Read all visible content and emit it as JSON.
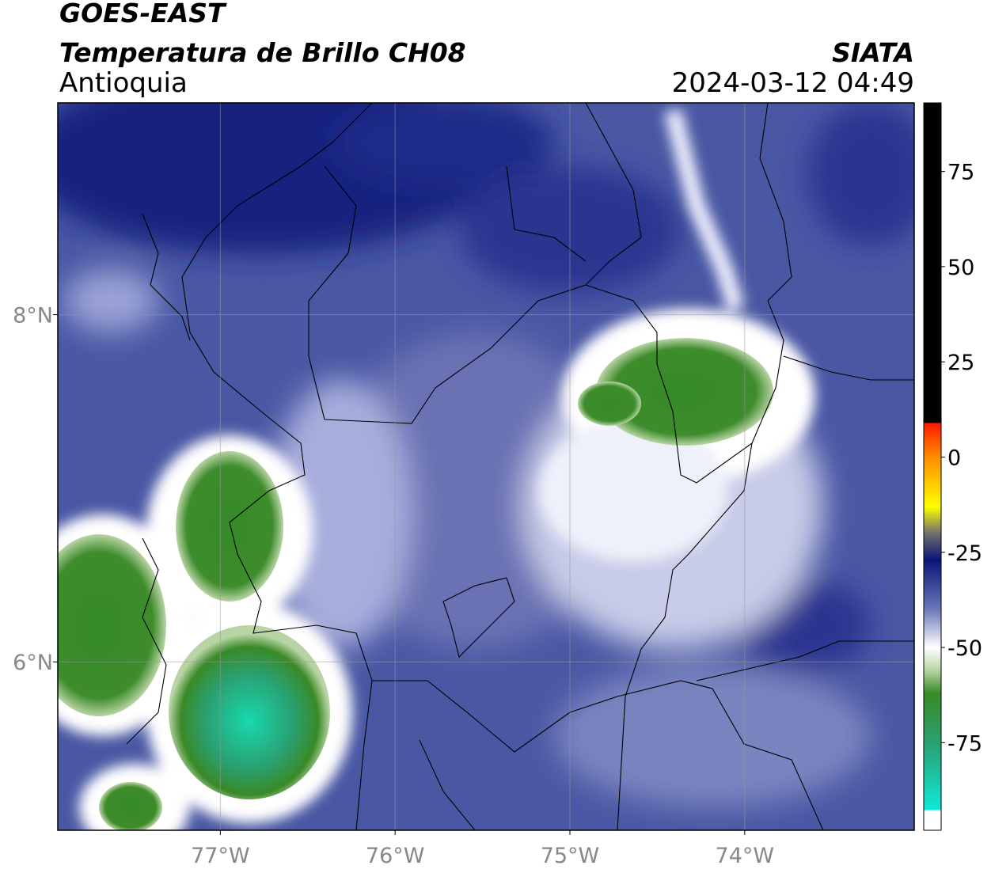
{
  "header": {
    "satellite": "GOES-EAST",
    "product": "Temperatura de Brillo CH08",
    "region": "Antioquia",
    "source": "SIATA",
    "datetime": "2024-03-12 04:49"
  },
  "map": {
    "xlim": [
      -77.93,
      -73.03
    ],
    "ylim": [
      5.03,
      9.22
    ],
    "xticks": [
      {
        "value": -77,
        "label": "77°W"
      },
      {
        "value": -76,
        "label": "76°W"
      },
      {
        "value": -75,
        "label": "75°W"
      },
      {
        "value": -74,
        "label": "74°W"
      }
    ],
    "yticks": [
      {
        "value": 6,
        "label": "6°N"
      },
      {
        "value": 8,
        "label": "8°N"
      }
    ],
    "grid": true
  },
  "colorbar": {
    "clim": [
      -98,
      93
    ],
    "ticks": [
      75,
      50,
      25,
      0,
      -25,
      -50,
      -75
    ],
    "colormap": [
      {
        "value": 93,
        "color": "#000000"
      },
      {
        "value": 9,
        "color": "#000000"
      },
      {
        "value": 8.9,
        "color": "#ff1a00"
      },
      {
        "value": 0,
        "color": "#ff8c00"
      },
      {
        "value": -13,
        "color": "#ffff00"
      },
      {
        "value": -20,
        "color": "#707070"
      },
      {
        "value": -27,
        "color": "#0a1478"
      },
      {
        "value": -40,
        "color": "#6b78b8"
      },
      {
        "value": -50,
        "color": "#ffffff"
      },
      {
        "value": -56,
        "color": "#b8d4a4"
      },
      {
        "value": -62,
        "color": "#3a8a28"
      },
      {
        "value": -75,
        "color": "#2aa070"
      },
      {
        "value": -92.5,
        "color": "#10e8d8"
      },
      {
        "value": -93,
        "color": "#ffffff"
      },
      {
        "value": -98,
        "color": "#ffffff"
      }
    ]
  }
}
